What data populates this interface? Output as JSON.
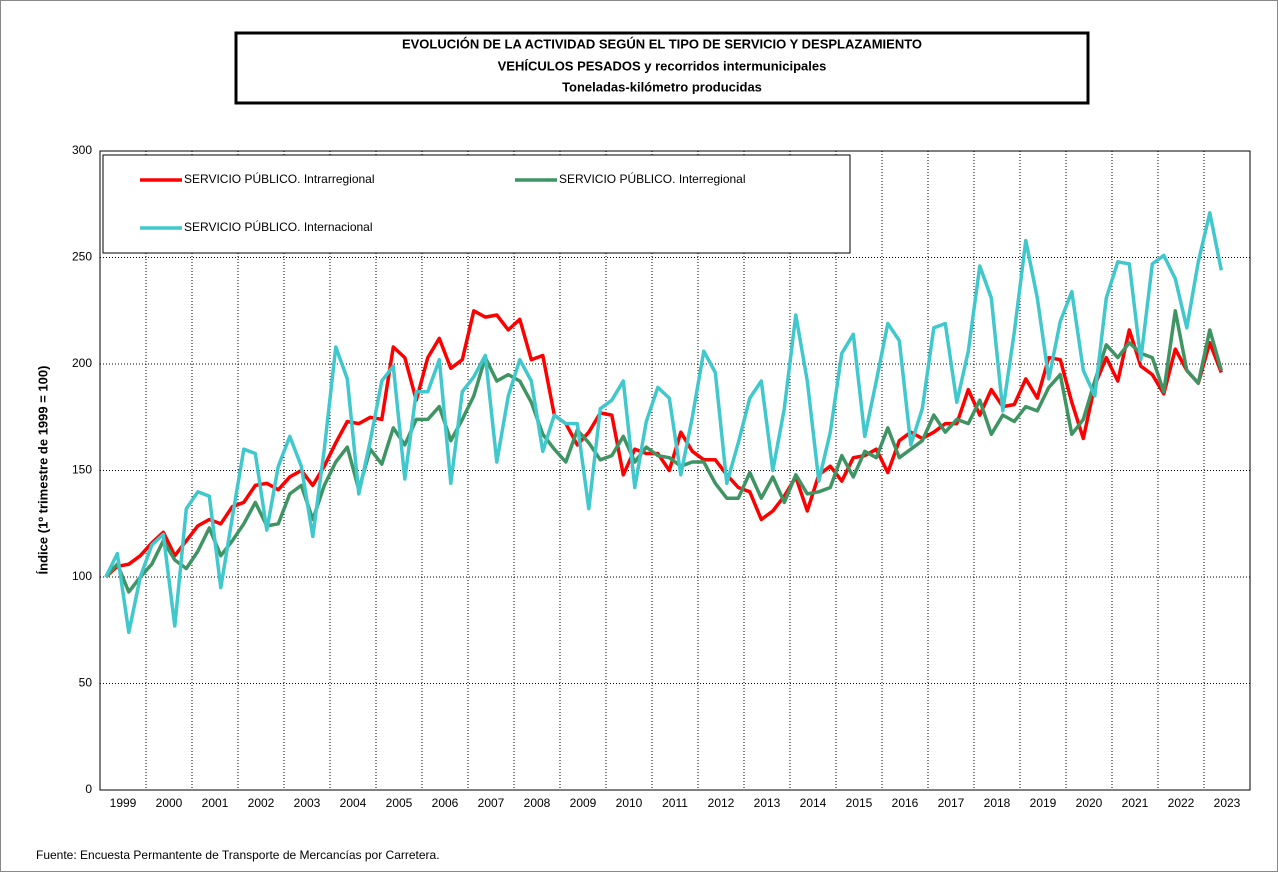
{
  "chart_data": {
    "type": "line",
    "title_lines": [
      "EVOLUCIÓN  DE  LA  ACTIVIDAD  SEGÚN  EL  TIPO  DE  SERVICIO  Y  DESPLAZAMIENTO",
      "VEHÍCULOS  PESADOS  y  recorridos  intermunicipales",
      "Toneladas-kilómetro producidas"
    ],
    "y_label": "Índice (1º trimestre de 1999 = 100)",
    "source": "Fuente: Encuesta  Permantente de Transporte de Mercancías por Carretera.",
    "categories": [
      "1999",
      null,
      null,
      null,
      "2000",
      null,
      null,
      null,
      "2001",
      null,
      null,
      null,
      "2002",
      null,
      null,
      null,
      "2003",
      null,
      null,
      null,
      "2004",
      null,
      null,
      null,
      "2005",
      null,
      null,
      null,
      "2006",
      null,
      null,
      null,
      "2007",
      null,
      null,
      null,
      "2008",
      null,
      null,
      null,
      "2009",
      null,
      null,
      null,
      "2010",
      null,
      null,
      null,
      "2011",
      null,
      null,
      null,
      "2012",
      null,
      null,
      null,
      "2013",
      null,
      null,
      null,
      "2014",
      null,
      null,
      null,
      "2015",
      null,
      null,
      null,
      "2016",
      null,
      null,
      null,
      "2017",
      null,
      null,
      null,
      "2018",
      null,
      null,
      null,
      "2019",
      null,
      null,
      null,
      "2020",
      null,
      null,
      null,
      "2021",
      null,
      null,
      null,
      "2022",
      null,
      null,
      null,
      "2023",
      null
    ],
    "series": [
      {
        "name": "SERVICIO PÚBLICO. Intrarregional",
        "color": "#ff0000",
        "values": [
          100,
          105,
          106,
          110,
          116,
          121,
          110,
          117,
          124,
          127,
          125,
          133,
          135,
          143,
          144,
          141,
          147,
          150,
          143,
          152,
          163,
          173,
          172,
          175,
          174,
          208,
          203,
          183,
          203,
          212,
          198,
          202,
          225,
          222,
          223,
          216,
          221,
          202,
          204,
          176,
          172,
          162,
          168,
          177,
          176,
          148,
          160,
          158,
          158,
          150,
          168,
          159,
          155,
          155,
          148,
          142,
          140,
          127,
          131,
          138,
          147,
          131,
          148,
          152,
          145,
          156,
          157,
          160,
          149,
          164,
          168,
          165,
          168,
          172,
          172,
          188,
          176,
          188,
          180,
          181,
          193,
          184,
          203,
          202,
          182,
          165,
          190,
          203,
          192,
          216,
          199,
          195,
          186,
          207,
          197,
          191,
          210,
          196
        ]
      },
      {
        "name": "SERVICIO PÚBLICO. Interregional",
        "color": "#3f9463",
        "values": [
          100,
          106,
          93,
          100,
          106,
          117,
          108,
          104,
          112,
          123,
          110,
          117,
          125,
          135,
          124,
          125,
          139,
          143,
          127,
          143,
          154,
          161,
          141,
          160,
          153,
          170,
          162,
          174,
          174,
          180,
          164,
          174,
          185,
          203,
          192,
          195,
          192,
          182,
          167,
          160,
          154,
          169,
          163,
          155,
          157,
          166,
          154,
          161,
          157,
          156,
          152,
          154,
          154,
          144,
          137,
          137,
          149,
          137,
          147,
          135,
          148,
          139,
          140,
          142,
          157,
          147,
          159,
          156,
          170,
          156,
          160,
          164,
          176,
          168,
          174,
          172,
          183,
          167,
          176,
          173,
          180,
          178,
          189,
          195,
          167,
          174,
          192,
          209,
          203,
          210,
          205,
          203,
          187,
          225,
          197,
          191,
          216,
          197
        ]
      },
      {
        "name": "SERVICIO PÚBLICO. Internacional",
        "color": "#40c8cc",
        "values": [
          100,
          111,
          74,
          100,
          115,
          120,
          77,
          132,
          140,
          138,
          95,
          128,
          160,
          158,
          122,
          152,
          166,
          152,
          119,
          160,
          208,
          193,
          139,
          164,
          192,
          199,
          146,
          187,
          187,
          202,
          144,
          187,
          194,
          204,
          154,
          185,
          202,
          192,
          159,
          176,
          172,
          172,
          132,
          179,
          183,
          192,
          142,
          173,
          189,
          184,
          148,
          175,
          206,
          196,
          144,
          163,
          184,
          192,
          150,
          179,
          223,
          192,
          145,
          168,
          205,
          214,
          166,
          192,
          219,
          211,
          162,
          179,
          217,
          219,
          182,
          206,
          246,
          231,
          178,
          215,
          258,
          231,
          193,
          220,
          234,
          197,
          185,
          231,
          248,
          247,
          202,
          247,
          251,
          240,
          217,
          248,
          271,
          244
        ]
      }
    ],
    "ylim": [
      0,
      300
    ],
    "yticks": [
      0,
      50,
      100,
      150,
      200,
      250,
      300
    ],
    "grid": true
  }
}
